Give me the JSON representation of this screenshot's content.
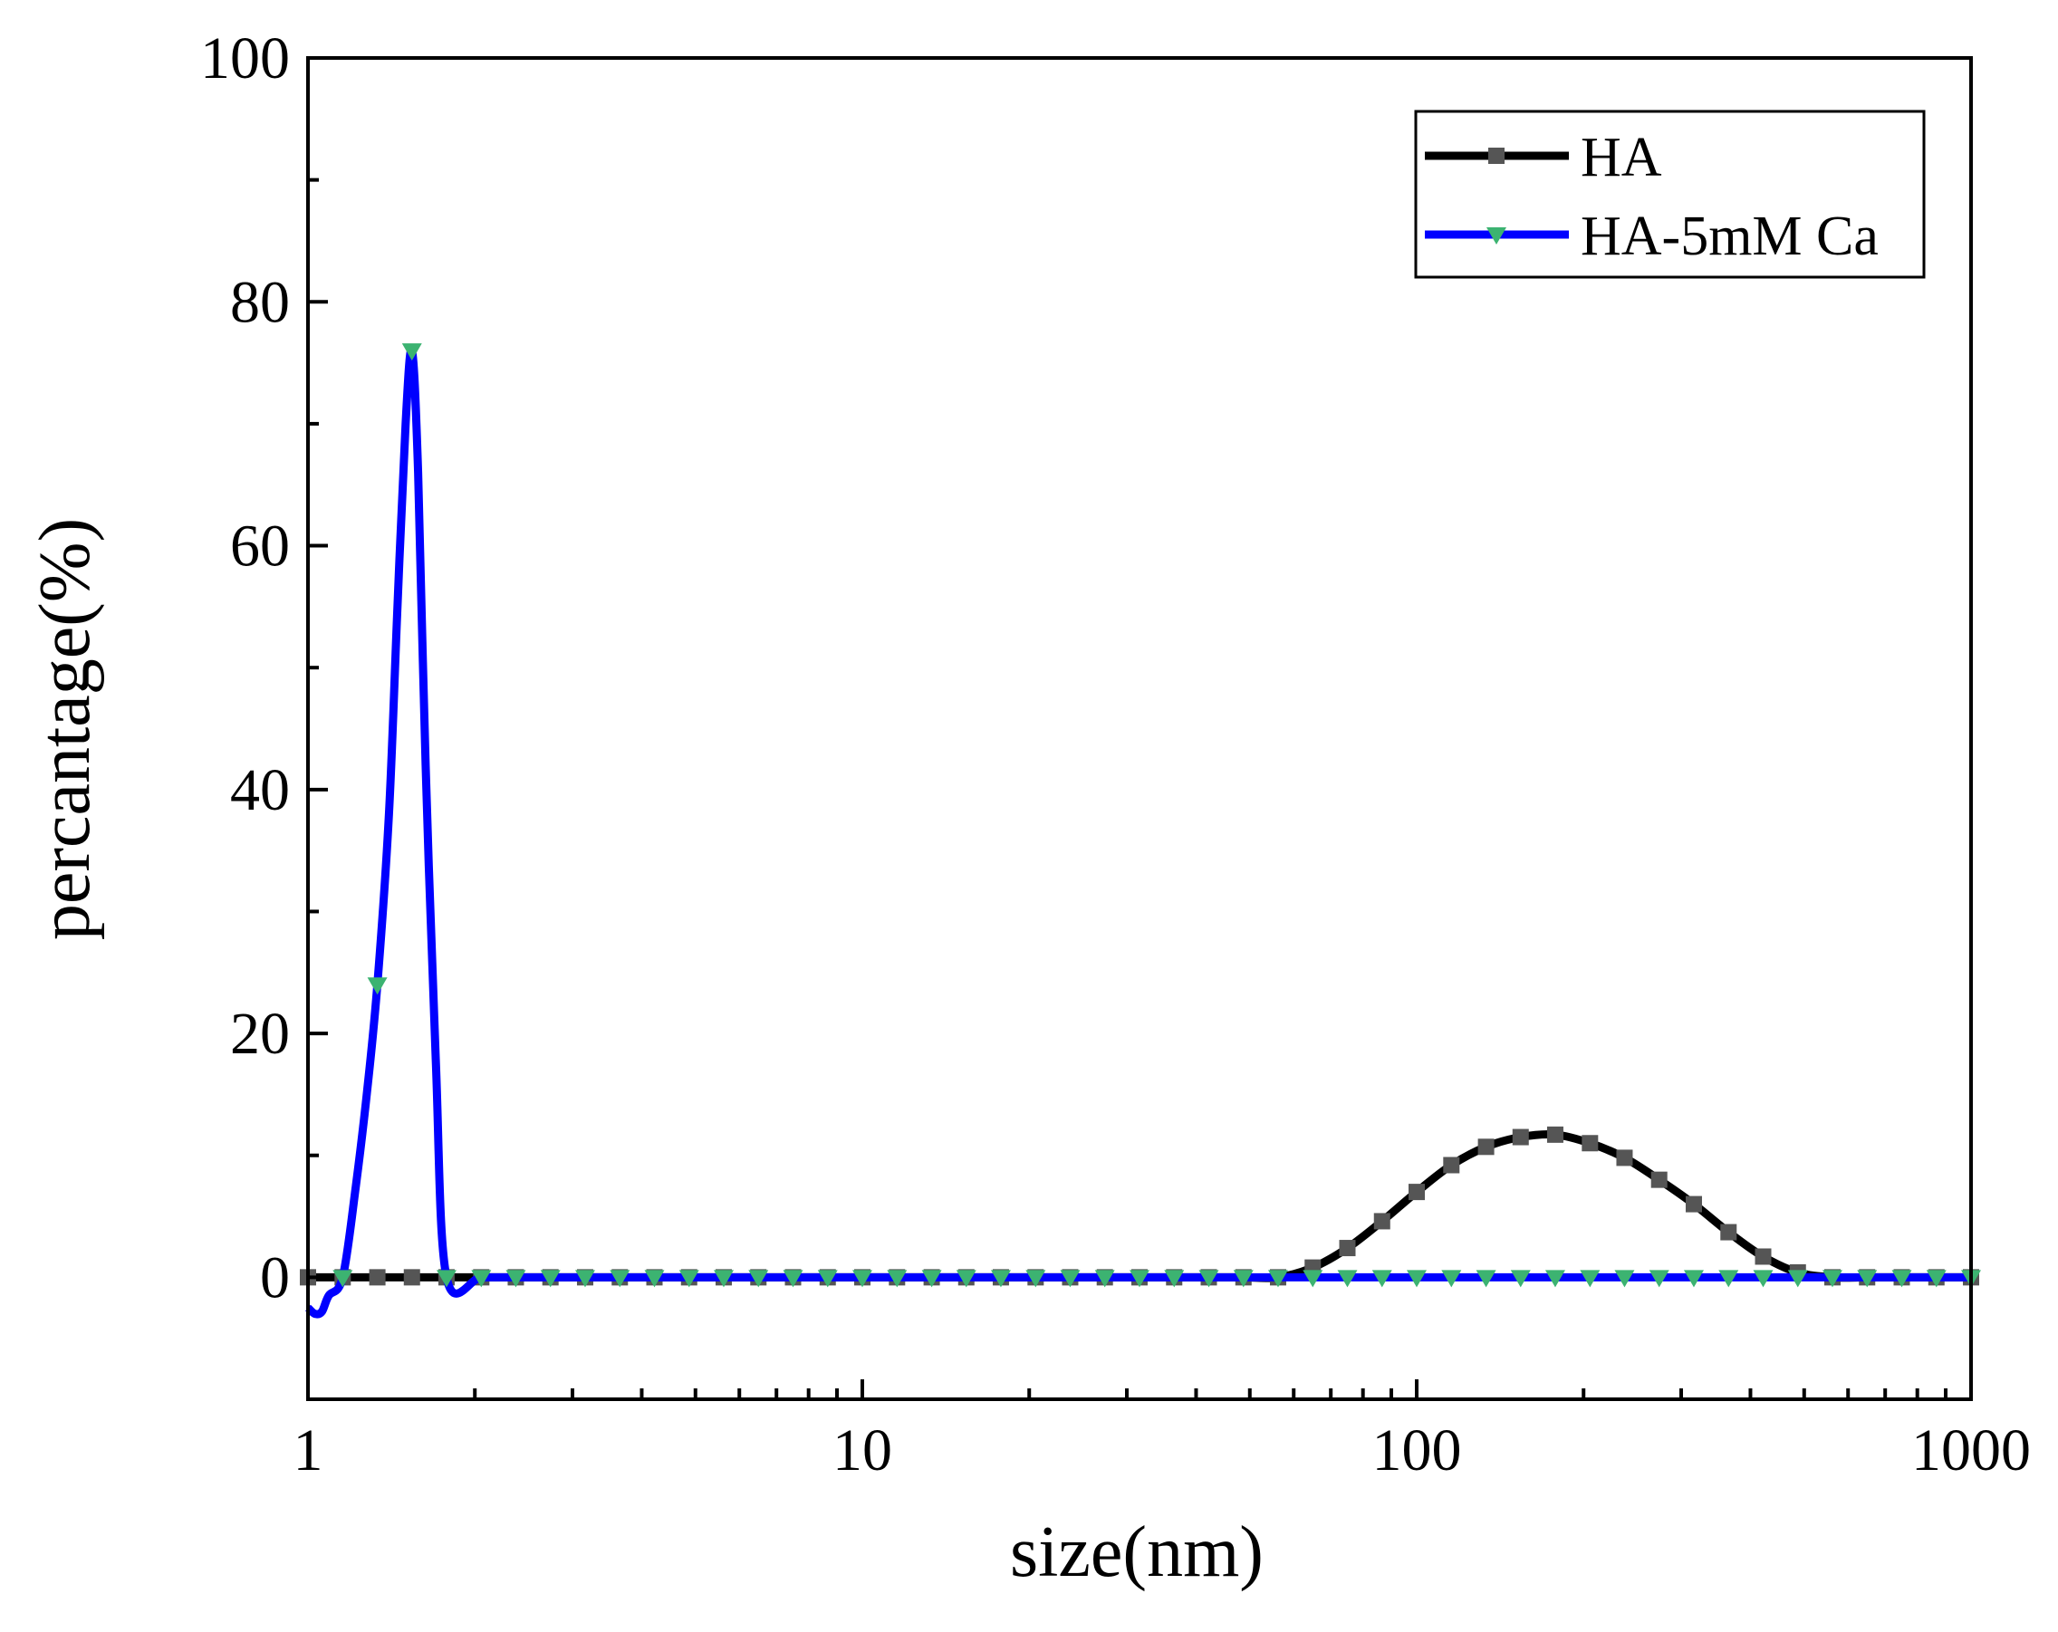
{
  "chart_data": {
    "type": "line",
    "xlabel": "size(nm)",
    "ylabel": "percantage(%)",
    "x_scale": "log",
    "xlim": [
      1,
      1000
    ],
    "ylim": [
      -10,
      100
    ],
    "xticks": [
      1,
      10,
      100,
      1000
    ],
    "yticks": [
      0,
      20,
      40,
      60,
      80,
      100
    ],
    "grid": false,
    "legend_position": "top-right",
    "series": [
      {
        "name": "HA",
        "color": "#000000",
        "marker": "square",
        "marker_color": "#555555",
        "x": [
          1.0,
          1.155,
          1.334,
          1.54,
          1.778,
          2.054,
          2.371,
          2.738,
          3.162,
          3.652,
          4.217,
          4.87,
          5.623,
          6.494,
          7.499,
          8.66,
          10.0,
          11.55,
          13.34,
          15.4,
          17.78,
          20.54,
          23.71,
          27.38,
          31.62,
          36.52,
          42.17,
          48.7,
          56.23,
          64.94,
          74.99,
          86.6,
          100.0,
          115.5,
          133.4,
          154.0,
          177.8,
          205.4,
          237.1,
          273.8,
          316.2,
          365.2,
          421.7,
          487.0,
          562.3,
          649.4,
          749.9,
          866.0,
          1000.0
        ],
        "y": [
          0,
          0,
          0,
          0,
          0,
          0,
          0,
          0,
          0,
          0,
          0,
          0,
          0,
          0,
          0,
          0,
          0,
          0,
          0,
          0,
          0,
          0,
          0,
          0,
          0,
          0,
          0,
          0,
          0,
          0.8,
          2.4,
          4.6,
          7.0,
          9.2,
          10.7,
          11.5,
          11.7,
          11.0,
          9.8,
          8.0,
          6.0,
          3.7,
          1.7,
          0.4,
          0,
          0,
          0,
          0,
          0
        ]
      },
      {
        "name": "HA-5mM Ca",
        "color": "#0000ff",
        "marker": "triangle-down",
        "marker_color": "#3cb371",
        "x": [
          1.0,
          1.03,
          1.06,
          1.09,
          1.155,
          1.22,
          1.28,
          1.334,
          1.4,
          1.45,
          1.5,
          1.54,
          1.58,
          1.63,
          1.7,
          1.778,
          2.054,
          2.371,
          2.738,
          3.162,
          3.652,
          4.217,
          4.87,
          5.623,
          6.494,
          7.499,
          8.66,
          10.0,
          11.55,
          13.34,
          15.4,
          17.78,
          20.54,
          23.71,
          27.38,
          31.62,
          36.52,
          42.17,
          48.7,
          56.23,
          64.94,
          74.99,
          86.6,
          100.0,
          115.5,
          133.4,
          154.0,
          177.8,
          205.4,
          237.1,
          273.8,
          316.2,
          365.2,
          421.7,
          487.0,
          562.3,
          649.4,
          749.9,
          866.0,
          1000.0
        ],
        "y": [
          -2.5,
          -3.0,
          -2.8,
          -1.5,
          0,
          7.5,
          15.5,
          24.0,
          38.0,
          55.0,
          70.0,
          76.0,
          66.0,
          42.0,
          18.0,
          0,
          0,
          0,
          0,
          0,
          0,
          0,
          0,
          0,
          0,
          0,
          0,
          0,
          0,
          0,
          0,
          0,
          0,
          0,
          0,
          0,
          0,
          0,
          0,
          0,
          0,
          0,
          0,
          0,
          0,
          0,
          0,
          0,
          0,
          0,
          0,
          0,
          0,
          0,
          0,
          0,
          0,
          0,
          0,
          0
        ],
        "marker_indices": [
          4,
          7,
          11,
          15,
          16,
          17,
          18,
          19,
          20,
          21,
          22,
          23,
          24,
          25,
          26,
          27,
          28,
          29,
          30,
          31,
          32,
          33,
          34,
          35,
          36,
          37,
          38,
          39,
          40,
          41,
          42,
          43,
          44,
          45,
          46,
          47,
          48,
          49,
          50,
          51,
          52,
          53,
          54,
          55,
          56,
          57,
          58,
          59
        ]
      }
    ]
  }
}
